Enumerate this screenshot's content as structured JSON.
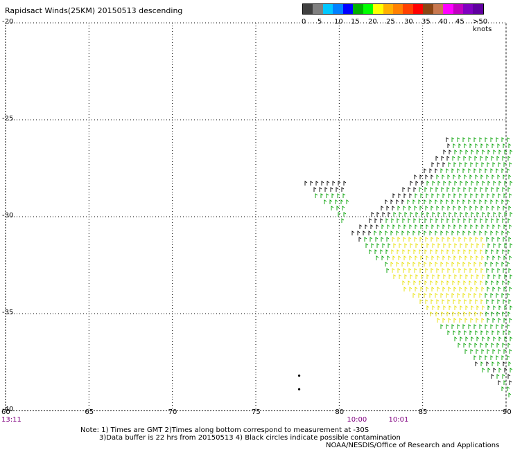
{
  "title": "Rapidsact Winds(25KM) 20150513 descending",
  "legend": {
    "labels": [
      "0",
      "5",
      "10",
      "15",
      "20",
      "25",
      "30",
      "35",
      "40",
      "45",
      ">50 knots"
    ],
    "colors": [
      "#404040",
      "#808080",
      "#00c8ff",
      "#0080ff",
      "#0000ff",
      "#00b000",
      "#00ff00",
      "#ffff00",
      "#ffb000",
      "#ff8000",
      "#ff4000",
      "#ff0000",
      "#8b4513",
      "#c87850",
      "#ff00ff",
      "#c000c0",
      "#8000c0",
      "#6000a0"
    ]
  },
  "map": {
    "lat_range": [
      -40,
      -20
    ],
    "lon_range": [
      60,
      90
    ],
    "lat_ticks": [
      "-20",
      "-25",
      "-30",
      "-35",
      "-40"
    ],
    "lon_ticks": [
      "60",
      "65",
      "70",
      "75",
      "80",
      "85",
      "90"
    ],
    "lon_tick_values": [
      60,
      65,
      70,
      75,
      80,
      85,
      90
    ],
    "lat_tick_values": [
      -20,
      -25,
      -30,
      -35,
      -40
    ],
    "grid": "dotted",
    "swath_wind_colors_knots": {
      "black": "0-5",
      "blue": "10-15",
      "green": "15-20",
      "yellow": "20-25"
    },
    "contamination_circles": [
      [
        77.6,
        -38.2
      ],
      [
        77.6,
        -38.9
      ]
    ]
  },
  "times": [
    {
      "label": "13:11",
      "lon": 60
    },
    {
      "label": "10:00",
      "lon": 80.5
    },
    {
      "label": "10:01",
      "lon": 83
    }
  ],
  "notes": [
    "Note: 1) Times are GMT 2)Times along bottom correspond to measurement at -30S",
    "3)Data buffer is 22 hrs from 20150513 4) Black circles indicate possible contamination",
    "NOAA/NESDIS/Office of Research and Applications"
  ]
}
